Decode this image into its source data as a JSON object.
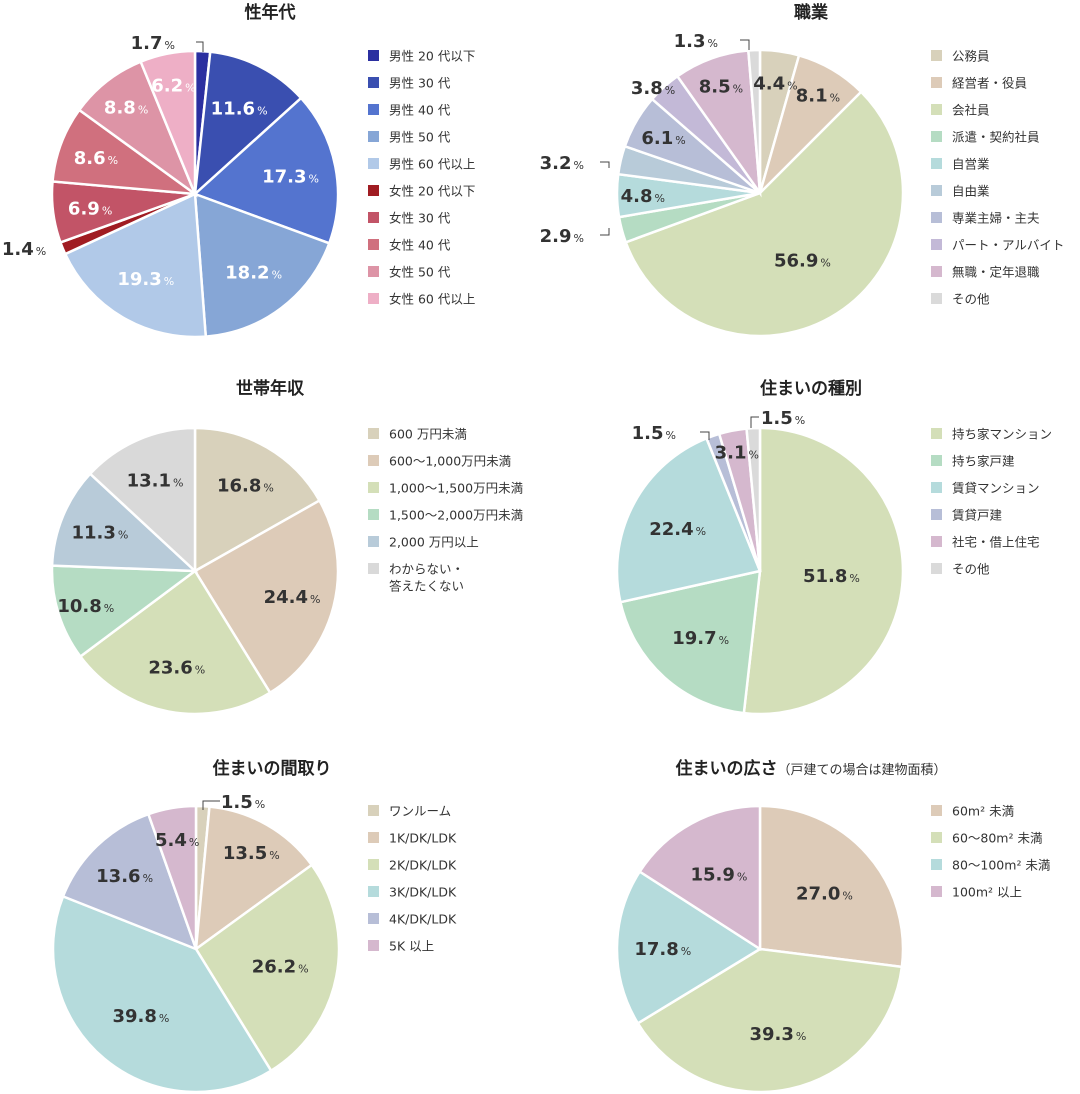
{
  "chart_data": [
    {
      "type": "pie",
      "title": "性年代",
      "subtitle": "",
      "categories": [
        "男性 20 代以下",
        "男性 30 代",
        "男性 40 代",
        "男性 50 代",
        "男性 60 代以上",
        "女性 20 代以下",
        "女性 30 代",
        "女性 40 代",
        "女性 50 代",
        "女性 60 代以上"
      ],
      "values": [
        1.7,
        11.6,
        17.3,
        18.2,
        19.3,
        1.4,
        6.9,
        8.6,
        8.8,
        6.2
      ],
      "colors": [
        "#2b2fa0",
        "#3a4fb0",
        "#5474cf",
        "#86a6d6",
        "#b1c9e8",
        "#a01c22",
        "#c25467",
        "#d0707e",
        "#dd94a6",
        "#eeafc6"
      ],
      "value_labels": [
        "1.7",
        "11.6",
        "17.3",
        "18.2",
        "19.3",
        "1.4",
        "6.9",
        "8.6",
        "8.8",
        "6.2"
      ],
      "pct": "%",
      "legend": "right"
    },
    {
      "type": "pie",
      "title": "職業",
      "subtitle": "",
      "categories": [
        "公務員",
        "経営者・役員",
        "会社員",
        "派遣・契約社員",
        "自営業",
        "自由業",
        "専業主婦・主夫",
        "パート・アルバイト",
        "無職・定年退職",
        "その他"
      ],
      "values": [
        4.4,
        8.1,
        56.9,
        2.9,
        4.8,
        3.2,
        6.1,
        3.8,
        8.5,
        1.3
      ],
      "colors": [
        "#d8d1bb",
        "#ddcbb8",
        "#d4dfb8",
        "#b5dcc3",
        "#b5dbdc",
        "#b8cbd9",
        "#b7bed7",
        "#c3b9d7",
        "#d5b8ce",
        "#dadada"
      ],
      "value_labels": [
        "4.4",
        "8.1",
        "56.9",
        "2.9",
        "4.8",
        "3.2",
        "6.1",
        "3.8",
        "8.5",
        "1.3"
      ],
      "pct": "%",
      "legend": "right"
    },
    {
      "type": "pie",
      "title": "世帯年収",
      "subtitle": "",
      "categories": [
        "600 万円未満",
        "600～1,000万円未満",
        "1,000～1,500万円未満",
        "1,500～2,000万円未満",
        "2,000 万円以上",
        "わからない・答えたくない"
      ],
      "legend_lines": [
        [
          "600 万円未満"
        ],
        [
          "600～1,000万円未満"
        ],
        [
          "1,000～1,500万円未満"
        ],
        [
          "1,500～2,000万円未満"
        ],
        [
          "2,000 万円以上"
        ],
        [
          "わからない・",
          "答えたくない"
        ]
      ],
      "values": [
        16.8,
        24.4,
        23.6,
        10.8,
        11.3,
        13.1
      ],
      "colors": [
        "#d8d1bb",
        "#ddcbb8",
        "#d4dfb8",
        "#b5dcc3",
        "#b8cbd9",
        "#d9d9d9"
      ],
      "value_labels": [
        "16.8",
        "24.4",
        "23.6",
        "10.8",
        "11.3",
        "13.1"
      ],
      "pct": "%",
      "legend": "right"
    },
    {
      "type": "pie",
      "title": "住まいの種別",
      "subtitle": "",
      "categories": [
        "持ち家マンション",
        "持ち家戸建",
        "賃貸マンション",
        "賃貸戸建",
        "社宅・借上住宅",
        "その他"
      ],
      "values": [
        51.8,
        19.7,
        22.4,
        1.5,
        3.1,
        1.5
      ],
      "colors": [
        "#d4dfb8",
        "#b5dcc3",
        "#b5dbdc",
        "#b7bed7",
        "#d5b8ce",
        "#dadada"
      ],
      "value_labels": [
        "51.8",
        "19.7",
        "22.4",
        "1.5",
        "3.1",
        "1.5"
      ],
      "pct": "%",
      "legend": "right"
    },
    {
      "type": "pie",
      "title": "住まいの間取り",
      "subtitle": "",
      "categories": [
        "ワンルーム",
        "1K/DK/LDK",
        "2K/DK/LDK",
        "3K/DK/LDK",
        "4K/DK/LDK",
        "5K 以上"
      ],
      "values": [
        1.5,
        13.5,
        26.2,
        39.8,
        13.6,
        5.4
      ],
      "colors": [
        "#d8d1bb",
        "#ddcbb8",
        "#d4dfb8",
        "#b5dbdc",
        "#b7bed7",
        "#d5b8ce"
      ],
      "value_labels": [
        "1.5",
        "13.5",
        "26.2",
        "39.8",
        "13.6",
        "5.4"
      ],
      "pct": "%",
      "legend": "right"
    },
    {
      "type": "pie",
      "title": "住まいの広さ",
      "subtitle": "（戸建ての場合は建物面積）",
      "categories": [
        "60m² 未満",
        "60～80m² 未満",
        "80～100m² 未満",
        "100m² 以上"
      ],
      "values": [
        27.0,
        39.3,
        17.8,
        15.9
      ],
      "colors": [
        "#ddcbb8",
        "#d4dfb8",
        "#b5dbdc",
        "#d5b8ce"
      ],
      "value_labels": [
        "27.0",
        "39.3",
        "17.8",
        "15.9"
      ],
      "pct": "%",
      "legend": "right"
    }
  ]
}
